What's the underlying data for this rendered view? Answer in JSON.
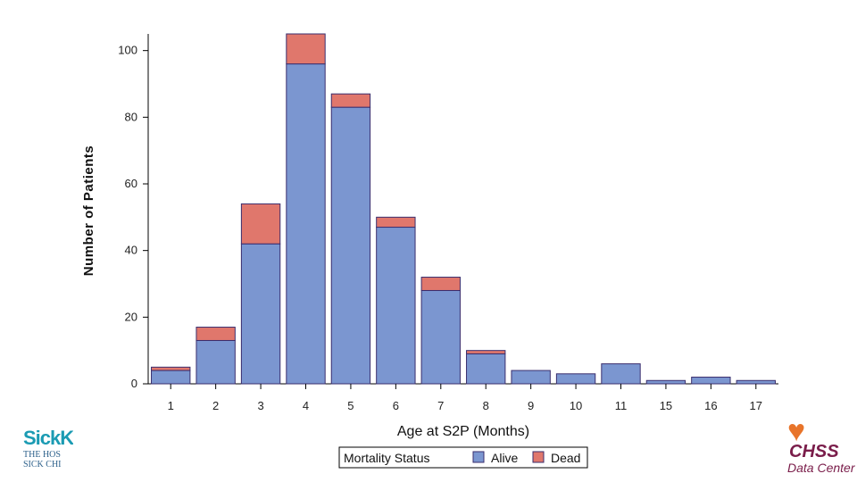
{
  "chart_data": {
    "type": "bar",
    "stacked": true,
    "categories": [
      "1",
      "2",
      "3",
      "4",
      "5",
      "6",
      "7",
      "8",
      "9",
      "10",
      "11",
      "15",
      "16",
      "17"
    ],
    "series": [
      {
        "name": "Alive",
        "values": [
          4,
          13,
          42,
          96,
          83,
          47,
          28,
          9,
          4,
          3,
          6,
          1,
          2,
          1
        ],
        "color": "#7b96d0"
      },
      {
        "name": "Dead",
        "values": [
          1,
          4,
          12,
          9,
          4,
          3,
          4,
          1,
          0,
          0,
          0,
          0,
          0,
          0
        ],
        "color": "#e0776c"
      }
    ],
    "xlabel": "Age at S2P (Months)",
    "ylabel": "Number of Patients",
    "ylim": [
      0,
      105
    ],
    "yticks": [
      0,
      20,
      40,
      60,
      80,
      100
    ],
    "grid": false,
    "legend": {
      "title": "Mortality Status",
      "position": "bottom-center"
    }
  },
  "logos": {
    "left_brand": "SickK",
    "left_line1": "THE HOS",
    "left_line2": "SICK CHI",
    "right_line1": "CHSS",
    "right_line2": "Data Center"
  }
}
